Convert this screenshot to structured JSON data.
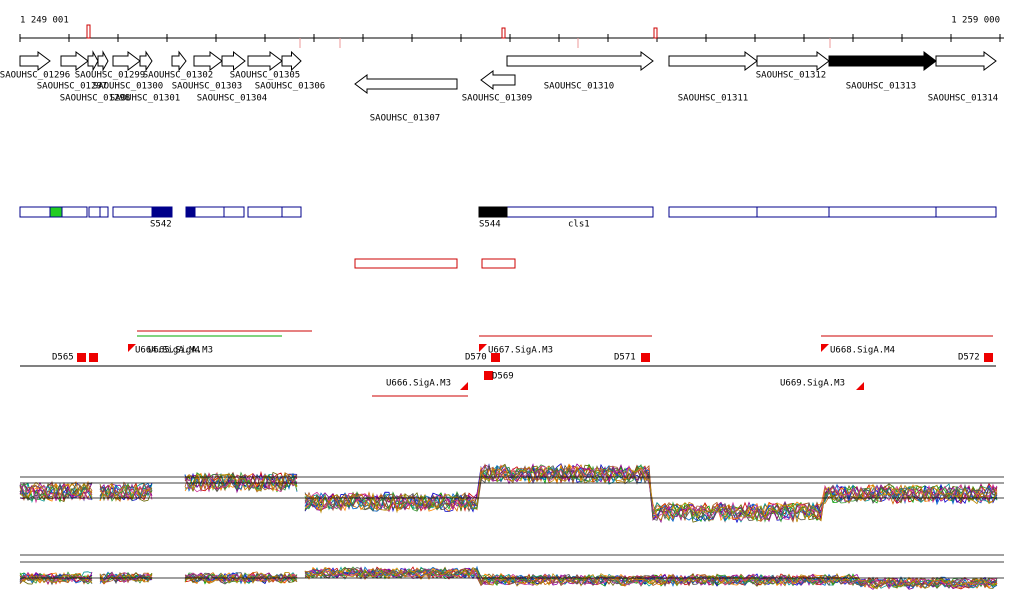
{
  "axis": {
    "start": "1 249 001",
    "end": "1 259 000"
  },
  "genes": [
    {
      "label": "SAOUHSC_01296"
    },
    {
      "label": "SAOUHSC_01299"
    },
    {
      "label": "SAOUHSC_01302"
    },
    {
      "label": "SAOUHSC_01305"
    },
    {
      "label": "SAOUHSC_01312"
    },
    {
      "label": "SAOUHSC_01297"
    },
    {
      "label": "SAOUHSC_01300"
    },
    {
      "label": "SAOUHSC_01303"
    },
    {
      "label": "SAOUHSC_01306"
    },
    {
      "label": "SAOUHSC_01310"
    },
    {
      "label": "SAOUHSC_01313"
    },
    {
      "label": "SAOUHSC_01298"
    },
    {
      "label": "SAOUHSC_01301"
    },
    {
      "label": "SAOUHSC_01304"
    },
    {
      "label": "SAOUHSC_01309"
    },
    {
      "label": "SAOUHSC_01311"
    },
    {
      "label": "SAOUHSC_01314"
    },
    {
      "label": "SAOUHSC_01307"
    }
  ],
  "regions": [
    {
      "label": "S542"
    },
    {
      "label": "S544"
    },
    {
      "label": "cls1"
    }
  ],
  "features": [
    {
      "label": "D565"
    },
    {
      "label": "U664.SigA.M4"
    },
    {
      "label": "U665.SigA.M3"
    },
    {
      "label": "D570"
    },
    {
      "label": "U667.SigA.M3"
    },
    {
      "label": "D571"
    },
    {
      "label": "U668.SigA.M4"
    },
    {
      "label": "D572"
    },
    {
      "label": "U666.SigA.M3"
    },
    {
      "label": "D569"
    },
    {
      "label": "U669.SigA.M3"
    }
  ]
}
